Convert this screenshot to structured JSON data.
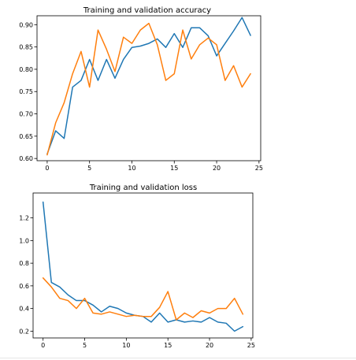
{
  "chart_data": [
    {
      "type": "line",
      "title": "Training and validation accuracy",
      "xlabel": "",
      "ylabel": "",
      "xlim": [
        -1.2,
        25.2
      ],
      "ylim": [
        0.595,
        0.92
      ],
      "xticks": [
        0,
        5,
        10,
        15,
        20,
        25
      ],
      "yticks": [
        0.6,
        0.65,
        0.7,
        0.75,
        0.8,
        0.85,
        0.9
      ],
      "xtick_labels": [
        "0",
        "5",
        "10",
        "15",
        "20",
        "25"
      ],
      "ytick_labels": [
        "0.60",
        "0.65",
        "0.70",
        "0.75",
        "0.80",
        "0.85",
        "0.90"
      ],
      "grid": false,
      "x": [
        0,
        1,
        2,
        3,
        4,
        5,
        6,
        7,
        8,
        9,
        10,
        11,
        12,
        13,
        14,
        15,
        16,
        17,
        18,
        19,
        20,
        21,
        22,
        23,
        24
      ],
      "series": [
        {
          "color": "#1f77b4",
          "values": [
            0.61,
            0.662,
            0.645,
            0.76,
            0.775,
            0.822,
            0.775,
            0.822,
            0.78,
            0.822,
            0.849,
            0.852,
            0.858,
            0.868,
            0.849,
            0.88,
            0.849,
            0.893,
            0.893,
            0.875,
            0.83,
            0.858,
            0.886,
            0.916,
            0.876
          ]
        },
        {
          "color": "#ff7f0e",
          "values": [
            0.608,
            0.68,
            0.725,
            0.79,
            0.84,
            0.76,
            0.888,
            0.845,
            0.795,
            0.872,
            0.858,
            0.888,
            0.903,
            0.855,
            0.775,
            0.79,
            0.888,
            0.823,
            0.855,
            0.87,
            0.855,
            0.775,
            0.808,
            0.76,
            0.79
          ]
        }
      ]
    },
    {
      "type": "line",
      "title": "Training and validation loss",
      "xlabel": "",
      "ylabel": "",
      "xlim": [
        -1.2,
        25.2
      ],
      "ylim": [
        0.14,
        1.42
      ],
      "xticks": [
        0,
        5,
        10,
        15,
        20,
        25
      ],
      "yticks": [
        0.2,
        0.4,
        0.6,
        0.8,
        1.0,
        1.2
      ],
      "xtick_labels": [
        "0",
        "5",
        "10",
        "15",
        "20",
        "25"
      ],
      "ytick_labels": [
        "0.2",
        "0.4",
        "0.6",
        "0.8",
        "1.0",
        "1.2"
      ],
      "grid": false,
      "x": [
        0,
        1,
        2,
        3,
        4,
        5,
        6,
        7,
        8,
        9,
        10,
        11,
        12,
        13,
        14,
        15,
        16,
        17,
        18,
        19,
        20,
        21,
        22,
        23,
        24
      ],
      "series": [
        {
          "color": "#1f77b4",
          "values": [
            1.34,
            0.63,
            0.59,
            0.52,
            0.47,
            0.47,
            0.43,
            0.37,
            0.42,
            0.4,
            0.36,
            0.34,
            0.33,
            0.28,
            0.36,
            0.28,
            0.3,
            0.28,
            0.29,
            0.28,
            0.32,
            0.28,
            0.27,
            0.2,
            0.24
          ]
        },
        {
          "color": "#ff7f0e",
          "values": [
            0.67,
            0.59,
            0.49,
            0.47,
            0.4,
            0.49,
            0.36,
            0.35,
            0.37,
            0.35,
            0.33,
            0.34,
            0.33,
            0.33,
            0.41,
            0.55,
            0.3,
            0.36,
            0.32,
            0.38,
            0.36,
            0.4,
            0.4,
            0.49,
            0.35
          ]
        }
      ]
    }
  ]
}
